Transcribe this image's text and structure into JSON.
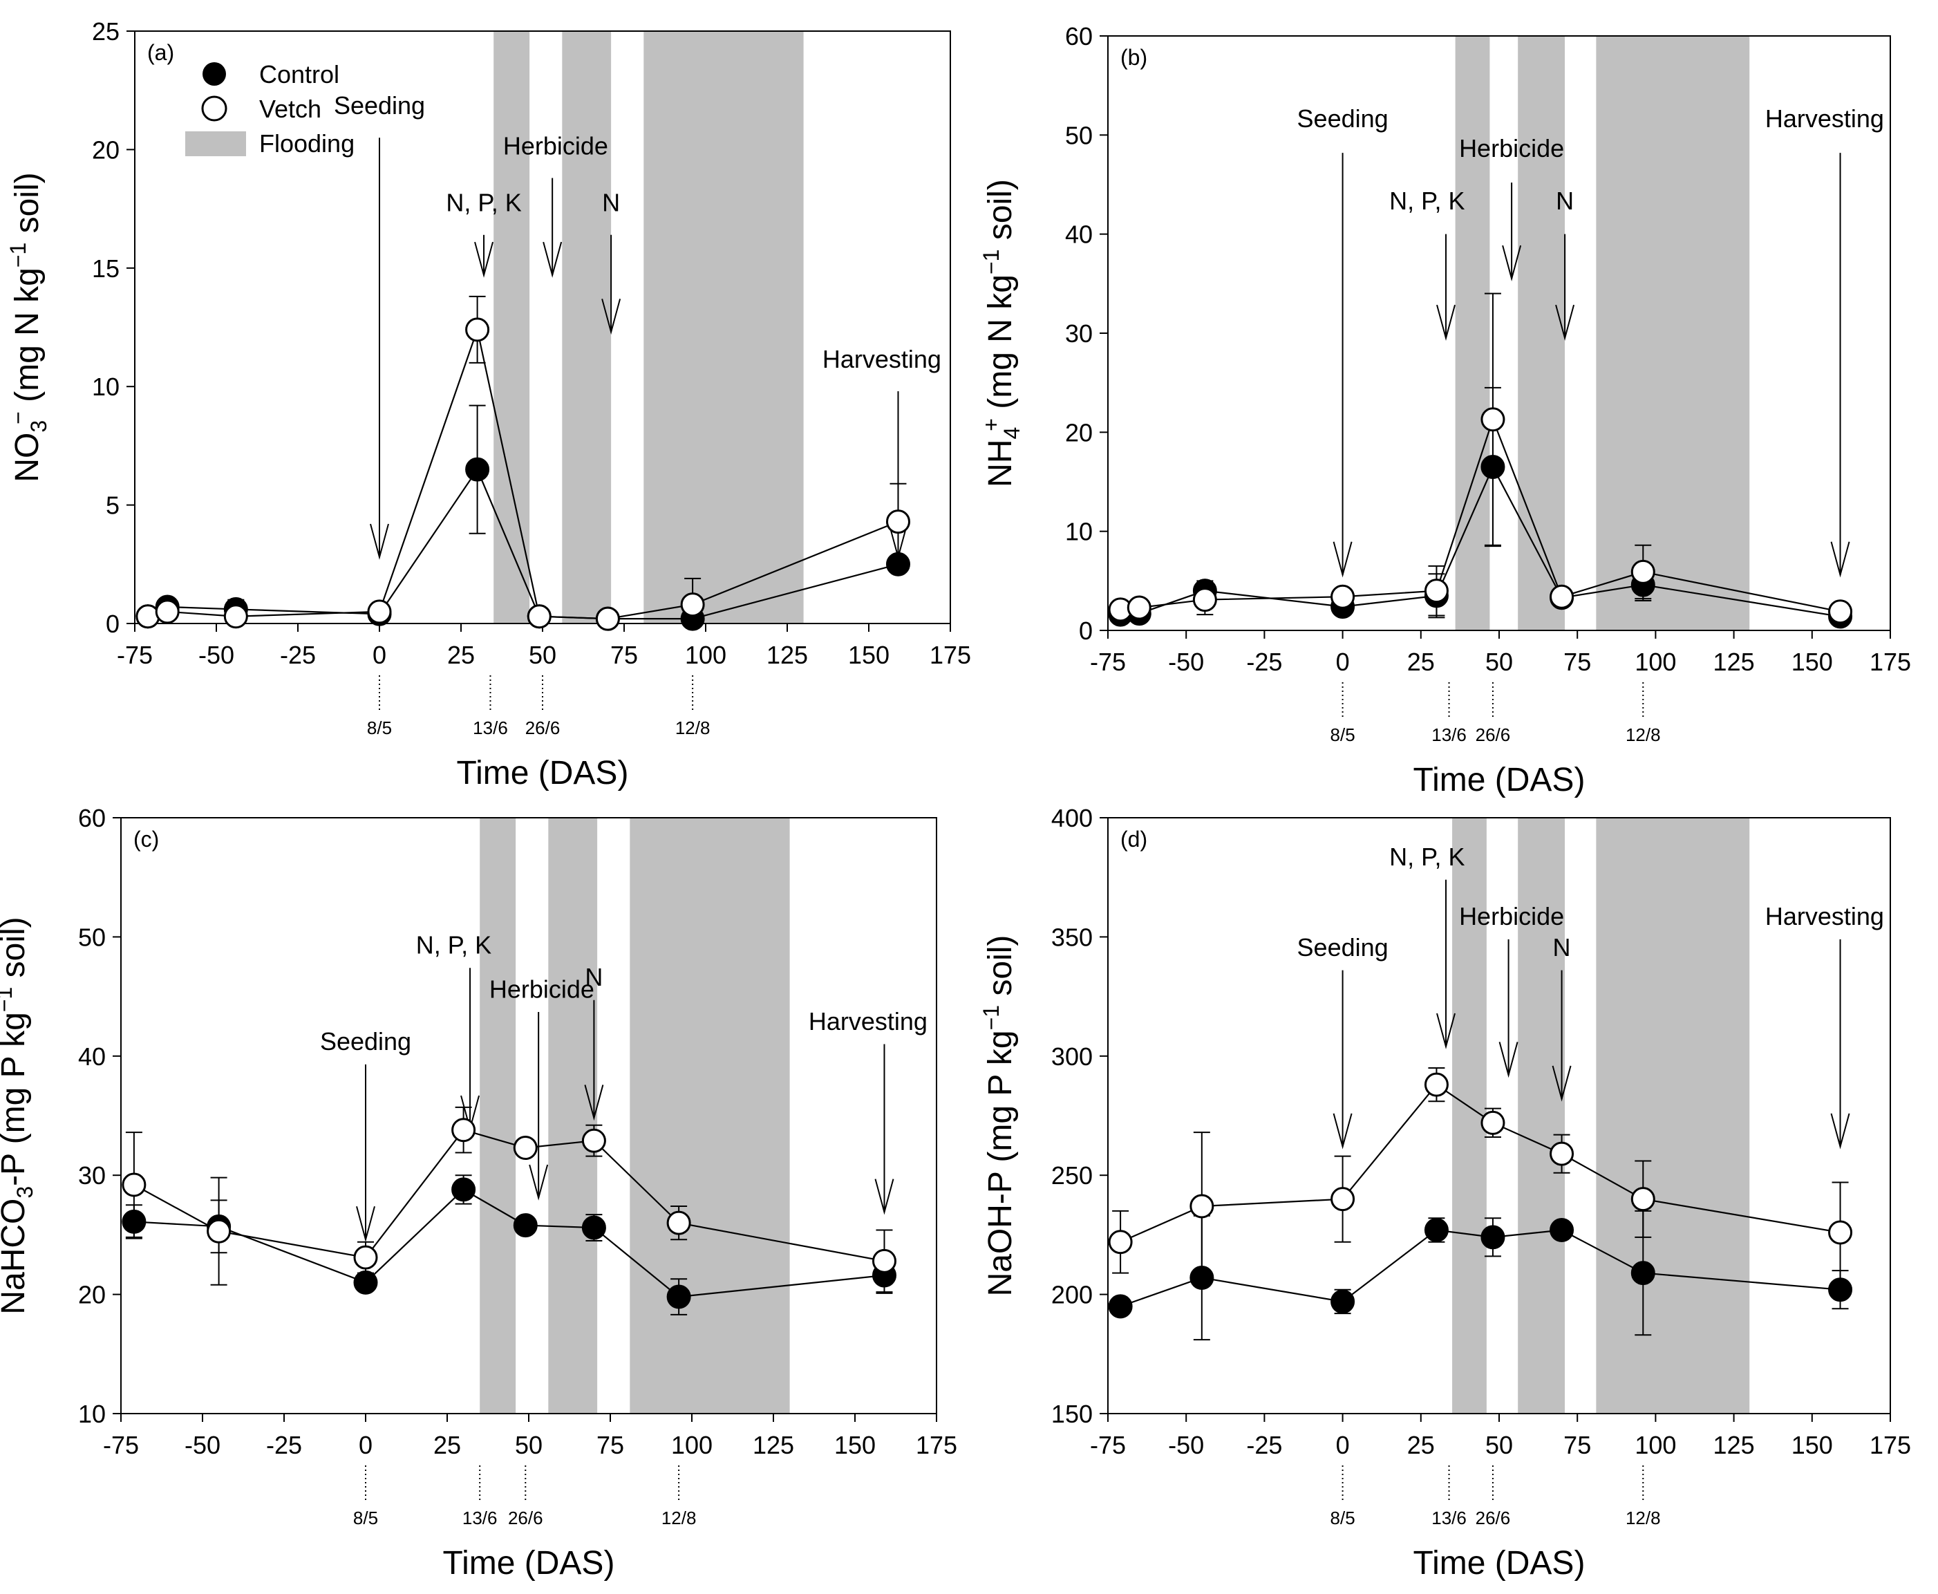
{
  "legend": {
    "control_label": "Control",
    "vetch_label": "Vetch",
    "flooding_label": "Flooding"
  },
  "colors": {
    "flooding": "#c0c0c0",
    "control_fill": "#000000",
    "vetch_fill": "#ffffff",
    "line": "#000000"
  },
  "chart_data": [
    {
      "id": "a",
      "type": "line",
      "panel_tag": "(a)",
      "xlabel": "Time (DAS)",
      "ylabel_parts": [
        "NO",
        "3",
        "−",
        " (mg N kg",
        "−1",
        " soil)"
      ],
      "xlim": [
        -75,
        175
      ],
      "ylim": [
        0,
        25
      ],
      "xticks": [
        -75,
        -50,
        -25,
        0,
        25,
        50,
        75,
        100,
        125,
        150,
        175
      ],
      "yticks": [
        0,
        5,
        10,
        15,
        20,
        25
      ],
      "flooding": [
        [
          35,
          46
        ],
        [
          56,
          71
        ],
        [
          81,
          130
        ]
      ],
      "dates": [
        {
          "x": 0,
          "label": "8/5"
        },
        {
          "x": 34,
          "label": "13/6"
        },
        {
          "x": 50,
          "label": "26/6"
        },
        {
          "x": 96,
          "label": "12/8"
        }
      ],
      "events": [
        {
          "label": "Seeding",
          "x": 0,
          "label_x": 0,
          "label_y": 21.5,
          "arrow_top": 20.5,
          "arrow_tip": 2.8
        },
        {
          "label": "N, P, K",
          "x": 32,
          "label_x": 32,
          "label_y": 17.4,
          "arrow_top": 16.4,
          "arrow_tip": 14.7
        },
        {
          "label": "Herbicide",
          "x": 53,
          "label_x": 54,
          "label_y": 19.8,
          "arrow_top": 18.8,
          "arrow_tip": 14.7
        },
        {
          "label": "N",
          "x": 71,
          "label_x": 71,
          "label_y": 17.4,
          "arrow_top": 16.4,
          "arrow_tip": 12.3
        },
        {
          "label": "Harvesting",
          "x": 159,
          "label_x": 154,
          "label_y": 10.8,
          "arrow_top": 9.8,
          "arrow_tip": 2.8
        }
      ],
      "series": [
        {
          "name": "Control",
          "x": [
            -71,
            -65,
            -44,
            0,
            30,
            49,
            70,
            96,
            159
          ],
          "y": [
            0.3,
            0.7,
            0.6,
            0.4,
            6.5,
            0.3,
            0.2,
            0.2,
            2.5
          ],
          "err": [
            0.1,
            0.2,
            0.4,
            0.2,
            2.7,
            0.1,
            0.1,
            0.2,
            0.2
          ]
        },
        {
          "name": "Vetch",
          "x": [
            -71,
            -65,
            -44,
            0,
            30,
            49,
            70,
            96,
            159
          ],
          "y": [
            0.3,
            0.5,
            0.3,
            0.5,
            12.4,
            0.3,
            0.2,
            0.8,
            4.3
          ],
          "err": [
            0.1,
            0.2,
            0.2,
            0.2,
            1.4,
            0.1,
            0.1,
            1.1,
            1.6
          ]
        }
      ]
    },
    {
      "id": "b",
      "type": "line",
      "panel_tag": "(b)",
      "xlabel": "Time (DAS)",
      "ylabel_parts": [
        "NH",
        "4",
        "+",
        " (mg N kg",
        "−1",
        " soil)"
      ],
      "xlim": [
        -75,
        175
      ],
      "ylim": [
        0,
        60
      ],
      "xticks": [
        -75,
        -50,
        -25,
        0,
        25,
        50,
        75,
        100,
        125,
        150,
        175
      ],
      "yticks": [
        0,
        10,
        20,
        30,
        40,
        50,
        60
      ],
      "flooding": [
        [
          36,
          47
        ],
        [
          56,
          71
        ],
        [
          81,
          130
        ]
      ],
      "dates": [
        {
          "x": 0,
          "label": "8/5"
        },
        {
          "x": 34,
          "label": "13/6"
        },
        {
          "x": 48,
          "label": "26/6"
        },
        {
          "x": 96,
          "label": "12/8"
        }
      ],
      "events": [
        {
          "label": "Seeding",
          "x": 0,
          "label_x": 0,
          "label_y": 50.8,
          "arrow_top": 48.2,
          "arrow_tip": 5.6
        },
        {
          "label": "N, P, K",
          "x": 33,
          "label_x": 27,
          "label_y": 42.5,
          "arrow_top": 40,
          "arrow_tip": 29.5
        },
        {
          "label": "Herbicide",
          "x": 54,
          "label_x": 54,
          "label_y": 47.8,
          "arrow_top": 45.2,
          "arrow_tip": 35.5
        },
        {
          "label": "N",
          "x": 71,
          "label_x": 71,
          "label_y": 42.5,
          "arrow_top": 40,
          "arrow_tip": 29.5
        },
        {
          "label": "Harvesting",
          "x": 159,
          "label_x": 154,
          "label_y": 50.8,
          "arrow_top": 48.2,
          "arrow_tip": 5.6
        }
      ],
      "series": [
        {
          "name": "Control",
          "x": [
            -71,
            -65,
            -44,
            0,
            30,
            48,
            70,
            96,
            159
          ],
          "y": [
            1.6,
            1.7,
            4.0,
            2.4,
            3.5,
            16.5,
            3.3,
            4.6,
            1.4
          ],
          "err": [
            0.3,
            0.3,
            1.0,
            0.4,
            2.2,
            8.0,
            0.4,
            1.6,
            0.3
          ]
        },
        {
          "name": "Vetch",
          "x": [
            -71,
            -65,
            -44,
            0,
            30,
            48,
            70,
            96,
            159
          ],
          "y": [
            2.1,
            2.3,
            3.1,
            3.4,
            4.0,
            21.3,
            3.4,
            5.9,
            1.9
          ],
          "err": [
            0.3,
            0.3,
            1.5,
            0.5,
            2.5,
            12.7,
            0.4,
            2.7,
            0.3
          ]
        }
      ]
    },
    {
      "id": "c",
      "type": "line",
      "panel_tag": "(c)",
      "xlabel": "Time (DAS)",
      "ylabel_parts": [
        "NaHCO",
        "3",
        "",
        "-P (mg P kg",
        "−1",
        "soil)"
      ],
      "xlim": [
        -75,
        175
      ],
      "ylim": [
        10,
        60
      ],
      "xticks": [
        -75,
        -50,
        -25,
        0,
        25,
        50,
        75,
        100,
        125,
        150,
        175
      ],
      "yticks": [
        10,
        20,
        30,
        40,
        50,
        60
      ],
      "flooding": [
        [
          35,
          46
        ],
        [
          56,
          71
        ],
        [
          81,
          130
        ]
      ],
      "dates": [
        {
          "x": 0,
          "label": "8/5"
        },
        {
          "x": 35,
          "label": "13/6"
        },
        {
          "x": 49,
          "label": "26/6"
        },
        {
          "x": 96,
          "label": "12/8"
        }
      ],
      "events": [
        {
          "label": "Seeding",
          "x": 0,
          "label_x": 0,
          "label_y": 40.5,
          "arrow_top": 39.3,
          "arrow_tip": 24.6
        },
        {
          "label": "N, P, K",
          "x": 32,
          "label_x": 27,
          "label_y": 48.6,
          "arrow_top": 47.4,
          "arrow_tip": 33.9
        },
        {
          "label": "Herbicide",
          "x": 53,
          "label_x": 54,
          "label_y": 44.9,
          "arrow_top": 43.7,
          "arrow_tip": 28.1
        },
        {
          "label": "N",
          "x": 70,
          "label_x": 70,
          "label_y": 45.9,
          "arrow_top": 44.7,
          "arrow_tip": 34.8
        },
        {
          "label": "Harvesting",
          "x": 159,
          "label_x": 154,
          "label_y": 42.2,
          "arrow_top": 41.0,
          "arrow_tip": 26.9
        }
      ],
      "series": [
        {
          "name": "Control",
          "x": [
            -71,
            -45,
            0,
            30,
            49,
            70,
            96,
            159
          ],
          "y": [
            26.1,
            25.7,
            21.0,
            28.8,
            25.8,
            25.6,
            19.8,
            21.6
          ],
          "err": [
            1.4,
            2.2,
            0.6,
            1.2,
            0.6,
            1.1,
            1.5,
            1.5
          ]
        },
        {
          "name": "Vetch",
          "x": [
            -71,
            -45,
            0,
            30,
            49,
            70,
            96,
            159
          ],
          "y": [
            29.2,
            25.3,
            23.1,
            33.8,
            32.3,
            32.9,
            26.0,
            22.8
          ],
          "err": [
            4.4,
            4.5,
            1.3,
            1.9,
            0.6,
            1.3,
            1.4,
            2.6
          ]
        }
      ]
    },
    {
      "id": "d",
      "type": "line",
      "panel_tag": "(d)",
      "xlabel": "Time (DAS)",
      "ylabel_parts": [
        "NaOH-P (mg P kg",
        "",
        "",
        "",
        "−1",
        "soil)"
      ],
      "xlim": [
        -75,
        175
      ],
      "ylim": [
        150,
        400
      ],
      "xticks": [
        -75,
        -50,
        -25,
        0,
        25,
        50,
        75,
        100,
        125,
        150,
        175
      ],
      "yticks": [
        150,
        200,
        250,
        300,
        350,
        400
      ],
      "flooding": [
        [
          35,
          46
        ],
        [
          56,
          71
        ],
        [
          81,
          130
        ]
      ],
      "dates": [
        {
          "x": 0,
          "label": "8/5"
        },
        {
          "x": 34,
          "label": "13/6"
        },
        {
          "x": 48,
          "label": "26/6"
        },
        {
          "x": 96,
          "label": "12/8"
        }
      ],
      "events": [
        {
          "label": "Seeding",
          "x": 0,
          "label_x": 0,
          "label_y": 342,
          "arrow_top": 336,
          "arrow_tip": 262
        },
        {
          "label": "N, P, K",
          "x": 33,
          "label_x": 27,
          "label_y": 380,
          "arrow_top": 374,
          "arrow_tip": 304
        },
        {
          "label": "Herbicide",
          "x": 53,
          "label_x": 54,
          "label_y": 355,
          "arrow_top": 349,
          "arrow_tip": 292
        },
        {
          "label": "N",
          "x": 70,
          "label_x": 70,
          "label_y": 342,
          "arrow_top": 336,
          "arrow_tip": 282
        },
        {
          "label": "Harvesting",
          "x": 159,
          "label_x": 154,
          "label_y": 355,
          "arrow_top": 349,
          "arrow_tip": 262
        }
      ],
      "series": [
        {
          "name": "Control",
          "x": [
            -71,
            -45,
            0,
            30,
            48,
            70,
            96,
            159
          ],
          "y": [
            195,
            207,
            197,
            227,
            224,
            227,
            209,
            202
          ],
          "err": [
            3,
            26,
            5,
            5,
            8,
            3,
            26,
            8
          ]
        },
        {
          "name": "Vetch",
          "x": [
            -71,
            -45,
            0,
            30,
            48,
            70,
            96,
            159
          ],
          "y": [
            222,
            237,
            240,
            288,
            272,
            259,
            240,
            226
          ],
          "err": [
            13,
            31,
            18,
            7,
            6,
            8,
            16,
            21
          ]
        }
      ]
    }
  ]
}
